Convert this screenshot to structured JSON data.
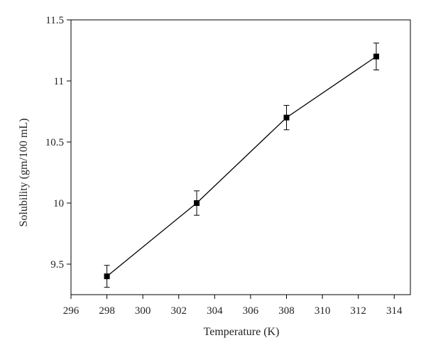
{
  "chart_data": {
    "type": "scatter",
    "title": "",
    "xlabel": "Temperature (K)",
    "ylabel": "Solubility (gm/100 mL)",
    "xlim": [
      296,
      314.9
    ],
    "ylim": [
      9.25,
      11.5
    ],
    "xticks": [
      296,
      298,
      300,
      302,
      304,
      306,
      308,
      310,
      312,
      314
    ],
    "yticks": [
      9.5,
      10,
      10.5,
      11,
      11.5
    ],
    "xtick_labels": [
      "296",
      "298",
      "300",
      "302",
      "304",
      "306",
      "308",
      "310",
      "312",
      "314"
    ],
    "ytick_labels": [
      "9.5",
      "10",
      "10.5",
      "11",
      "11.5"
    ],
    "grid": false,
    "series": [
      {
        "x": [
          298,
          303,
          308,
          313
        ],
        "y": [
          9.4,
          10.0,
          10.7,
          11.2
        ],
        "error": [
          0.09,
          0.1,
          0.1,
          0.11
        ],
        "marker": "square",
        "line": true,
        "color": "#000000"
      }
    ]
  }
}
